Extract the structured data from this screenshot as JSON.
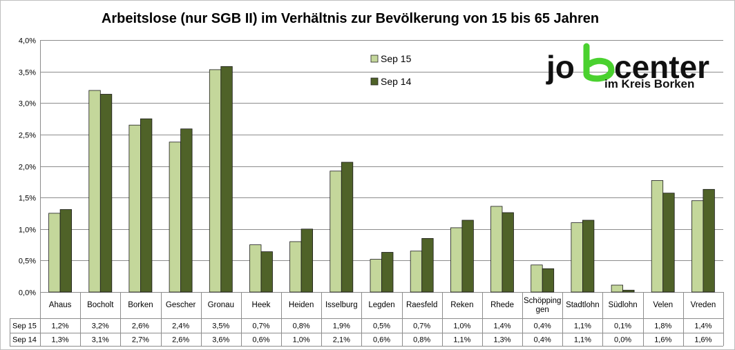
{
  "chart_data": {
    "type": "bar",
    "title": "Arbeitslose (nur SGB II) im Verhältnis zur Bevölkerung von 15 bis 65 Jahren",
    "categories": [
      "Ahaus",
      "Bocholt",
      "Borken",
      "Gescher",
      "Gronau",
      "Heek",
      "Heiden",
      "Isselburg",
      "Legden",
      "Raesfeld",
      "Reken",
      "Rhede",
      "Schöpping|gen",
      "Stadtlohn",
      "Südlohn",
      "Velen",
      "Vreden"
    ],
    "series": [
      {
        "name": "Sep 15",
        "color": "#c4d79b",
        "values": [
          1.25,
          3.2,
          2.65,
          2.38,
          3.53,
          0.75,
          0.8,
          1.92,
          0.52,
          0.65,
          1.02,
          1.36,
          0.43,
          1.1,
          0.11,
          1.77,
          1.45
        ],
        "labels": [
          "1,2%",
          "3,2%",
          "2,6%",
          "2,4%",
          "3,5%",
          "0,7%",
          "0,8%",
          "1,9%",
          "0,5%",
          "0,7%",
          "1,0%",
          "1,4%",
          "0,4%",
          "1,1%",
          "0,1%",
          "1,8%",
          "1,4%"
        ]
      },
      {
        "name": "Sep 14",
        "color": "#4f6228",
        "values": [
          1.31,
          3.14,
          2.75,
          2.59,
          3.58,
          0.64,
          1.0,
          2.06,
          0.63,
          0.85,
          1.14,
          1.26,
          0.37,
          1.14,
          0.03,
          1.57,
          1.63
        ],
        "labels": [
          "1,3%",
          "3,1%",
          "2,7%",
          "2,6%",
          "3,6%",
          "0,6%",
          "1,0%",
          "2,1%",
          "0,6%",
          "0,8%",
          "1,1%",
          "1,3%",
          "0,4%",
          "1,1%",
          "0,0%",
          "1,6%",
          "1,6%"
        ]
      }
    ],
    "ylim": [
      0,
      4.0
    ],
    "yticks": [
      0,
      0.5,
      1.0,
      1.5,
      2.0,
      2.5,
      3.0,
      3.5,
      4.0
    ],
    "ytick_labels": [
      "0,0%",
      "0,5%",
      "1,0%",
      "1,5%",
      "2,0%",
      "2,5%",
      "3,0%",
      "3,5%",
      "4,0%"
    ],
    "grid": true,
    "legend": "top-center",
    "data_table": true
  },
  "logo": {
    "text_before": "jo",
    "text_after": "center",
    "subtitle": "im Kreis Borken",
    "accent_color": "#4ad12f"
  }
}
